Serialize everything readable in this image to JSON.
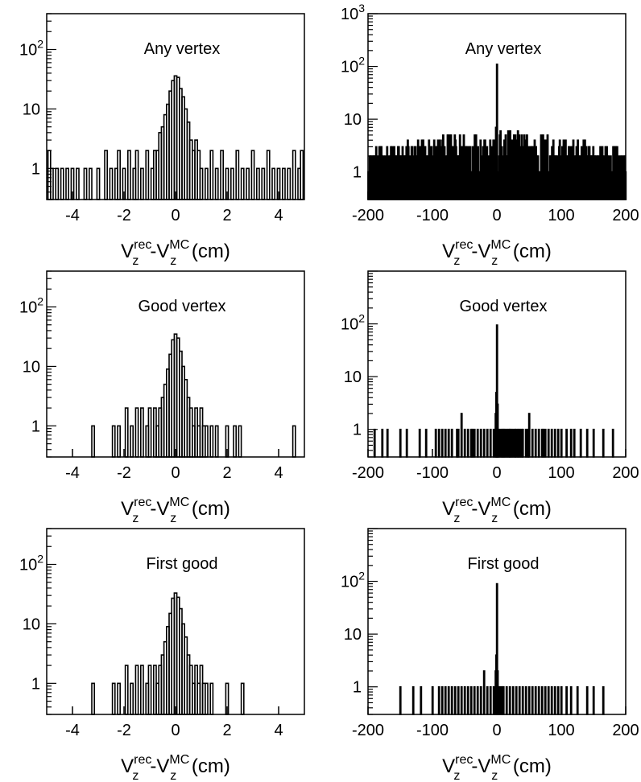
{
  "chart_data": [
    {
      "type": "histogram",
      "title": "Any vertex",
      "xlabel": {
        "base1": "V",
        "sub1": "z",
        "sup1": "rec",
        "dash": "-",
        "base2": "V",
        "sub2": "z",
        "sup2": "MC",
        "unit": " (cm)"
      },
      "yscale": "log",
      "xlim": [
        -5,
        5
      ],
      "xticks": [
        "-4",
        "-2",
        "0",
        "2",
        "4"
      ],
      "xtick_values": [
        -4,
        -2,
        0,
        2,
        4
      ],
      "ylim": [
        0.3,
        400
      ],
      "yticks": [
        {
          "label": "1",
          "value": 1
        },
        {
          "label": "10",
          "value": 10
        },
        {
          "label": "10",
          "sup": "2",
          "value": 100
        }
      ],
      "bin_width": 0.1,
      "peak_bins": {
        "x": [
          -0.9,
          -0.8,
          -0.7,
          -0.6,
          -0.5,
          -0.4,
          -0.3,
          -0.2,
          -0.1,
          0.0,
          0.1,
          0.2,
          0.3,
          0.4,
          0.5,
          0.6,
          0.7,
          0.8,
          0.9,
          1.0
        ],
        "values": [
          1,
          2,
          2,
          4,
          5,
          8,
          12,
          20,
          30,
          36,
          34,
          22,
          16,
          10,
          6,
          3,
          2,
          3,
          2,
          1
        ]
      },
      "tail_bins": {
        "x": [
          -4.9,
          -4.8,
          -4.6,
          -4.4,
          -4.2,
          -4.0,
          -3.8,
          -3.5,
          -3.3,
          -3.0,
          -2.7,
          -2.5,
          -2.3,
          -2.2,
          -2.0,
          -1.8,
          -1.6,
          -1.5,
          -1.3,
          -1.1,
          1.2,
          1.4,
          1.6,
          1.8,
          2.0,
          2.2,
          2.4,
          2.6,
          2.8,
          3.0,
          3.2,
          3.4,
          3.6,
          3.8,
          4.0,
          4.2,
          4.4,
          4.6,
          4.8,
          4.9
        ],
        "values": [
          2,
          1,
          1,
          1,
          1,
          1,
          1,
          1,
          1,
          1,
          2,
          1,
          1,
          2,
          1,
          2,
          1,
          2,
          1,
          2,
          1,
          2,
          1,
          2,
          1,
          1,
          2,
          1,
          1,
          2,
          1,
          1,
          2,
          1,
          1,
          1,
          1,
          2,
          1,
          2
        ]
      }
    },
    {
      "type": "histogram",
      "title": "Any vertex",
      "xlabel": {
        "base1": "V",
        "sub1": "z",
        "sup1": "rec",
        "dash": "-",
        "base2": "V",
        "sub2": "z",
        "sup2": "MC",
        "unit": " (cm)"
      },
      "yscale": "log",
      "xlim": [
        -200,
        200
      ],
      "xticks": [
        "-200",
        "-100",
        "0",
        "100",
        "200"
      ],
      "xtick_values": [
        -200,
        -100,
        0,
        100,
        200
      ],
      "ylim": [
        0.3,
        1000
      ],
      "yticks": [
        {
          "label": "1",
          "value": 1
        },
        {
          "label": "10",
          "value": 10
        },
        {
          "label": "10",
          "sup": "2",
          "value": 100
        },
        {
          "label": "10",
          "sup": "3",
          "value": 1000
        }
      ],
      "bin_width": 1,
      "spike": {
        "x": 0,
        "value": 110
      },
      "noise_range": [
        1,
        7
      ]
    },
    {
      "type": "histogram",
      "title": "Good vertex",
      "xlabel": {
        "base1": "V",
        "sub1": "z",
        "sup1": "rec",
        "dash": "-",
        "base2": "V",
        "sub2": "z",
        "sup2": "MC",
        "unit": " (cm)"
      },
      "yscale": "log",
      "xlim": [
        -5,
        5
      ],
      "xticks": [
        "-4",
        "-2",
        "0",
        "2",
        "4"
      ],
      "xtick_values": [
        -4,
        -2,
        0,
        2,
        4
      ],
      "ylim": [
        0.3,
        400
      ],
      "yticks": [
        {
          "label": "1",
          "value": 1
        },
        {
          "label": "10",
          "value": 10
        },
        {
          "label": "10",
          "sup": "2",
          "value": 100
        }
      ],
      "bin_width": 0.1,
      "peak_bins": {
        "x": [
          -0.8,
          -0.7,
          -0.6,
          -0.5,
          -0.4,
          -0.3,
          -0.2,
          -0.1,
          0.0,
          0.1,
          0.2,
          0.3,
          0.4,
          0.5,
          0.6,
          0.7
        ],
        "values": [
          2,
          1,
          2,
          3,
          5,
          9,
          16,
          28,
          35,
          30,
          18,
          10,
          6,
          3,
          2,
          1
        ]
      },
      "tail_bins": {
        "x": [
          -3.2,
          -2.4,
          -2.2,
          -1.9,
          -1.7,
          -1.5,
          -1.3,
          -1.1,
          -1.0,
          0.8,
          0.9,
          1.0,
          1.1,
          1.2,
          1.4,
          1.6,
          2.0,
          2.3,
          2.5,
          4.6
        ],
        "values": [
          1,
          1,
          1,
          2,
          1,
          2,
          2,
          1,
          2,
          2,
          1,
          2,
          1,
          1,
          1,
          1,
          1,
          1,
          1,
          1
        ]
      }
    },
    {
      "type": "histogram",
      "title": "Good vertex",
      "xlabel": {
        "base1": "V",
        "sub1": "z",
        "sup1": "rec",
        "dash": "-",
        "base2": "V",
        "sub2": "z",
        "sup2": "MC",
        "unit": " (cm)"
      },
      "yscale": "log",
      "xlim": [
        -200,
        200
      ],
      "xticks": [
        "-200",
        "-100",
        "0",
        "100",
        "200"
      ],
      "xtick_values": [
        -200,
        -100,
        0,
        100,
        200
      ],
      "ylim": [
        0.3,
        1000
      ],
      "yticks": [
        {
          "label": "1",
          "value": 1
        },
        {
          "label": "10",
          "value": 10
        },
        {
          "label": "10",
          "sup": "2",
          "value": 100
        }
      ],
      "bin_width": 1,
      "spike": {
        "x": 0,
        "value": 95
      },
      "secondary_bins": {
        "x": [
          -2,
          -1,
          1,
          2
        ],
        "values": [
          2,
          5,
          3,
          1
        ]
      },
      "tail_bins": {
        "x": [
          -190,
          -178,
          -170,
          -150,
          -140,
          -120,
          -110,
          -95,
          -90,
          -85,
          -80,
          -75,
          -70,
          -62,
          -60,
          -55,
          -50,
          -45,
          -40,
          -38,
          -35,
          -30,
          -25,
          -20,
          -15,
          -10,
          -5,
          5,
          8,
          10,
          12,
          15,
          18,
          20,
          22,
          25,
          28,
          30,
          33,
          35,
          38,
          40,
          45,
          48,
          50,
          55,
          60,
          65,
          70,
          72,
          75,
          80,
          85,
          90,
          95,
          100,
          108,
          115,
          120,
          130,
          140,
          150,
          165,
          180
        ],
        "values": [
          1,
          1,
          1,
          1,
          1,
          1,
          1,
          1,
          1,
          1,
          1,
          1,
          1,
          1,
          1,
          2,
          1,
          1,
          1,
          1,
          1,
          1,
          1,
          1,
          1,
          1,
          1,
          1,
          1,
          1,
          1,
          1,
          1,
          1,
          1,
          1,
          1,
          1,
          1,
          1,
          1,
          1,
          1,
          1,
          2,
          1,
          1,
          1,
          1,
          1,
          1,
          1,
          1,
          1,
          1,
          1,
          1,
          1,
          1,
          1,
          1,
          1,
          1,
          1
        ]
      }
    },
    {
      "type": "histogram",
      "title": "First good",
      "xlabel": {
        "base1": "V",
        "sub1": "z",
        "sup1": "rec",
        "dash": "-",
        "base2": "V",
        "sub2": "z",
        "sup2": "MC",
        "unit": " (cm)"
      },
      "yscale": "log",
      "xlim": [
        -5,
        5
      ],
      "xticks": [
        "-4",
        "-2",
        "0",
        "2",
        "4"
      ],
      "xtick_values": [
        -4,
        -2,
        0,
        2,
        4
      ],
      "ylim": [
        0.3,
        400
      ],
      "yticks": [
        {
          "label": "1",
          "value": 1
        },
        {
          "label": "10",
          "value": 10
        },
        {
          "label": "10",
          "sup": "2",
          "value": 100
        }
      ],
      "bin_width": 0.1,
      "peak_bins": {
        "x": [
          -0.8,
          -0.7,
          -0.6,
          -0.5,
          -0.4,
          -0.3,
          -0.2,
          -0.1,
          0.0,
          0.1,
          0.2,
          0.3,
          0.4,
          0.5,
          0.6,
          0.7
        ],
        "values": [
          2,
          1,
          2,
          3,
          5,
          9,
          15,
          27,
          33,
          28,
          18,
          10,
          6,
          3,
          2,
          1
        ]
      },
      "tail_bins": {
        "x": [
          -3.2,
          -2.4,
          -2.2,
          -1.9,
          -1.7,
          -1.5,
          -1.3,
          -1.1,
          -1.0,
          0.8,
          0.9,
          1.0,
          1.1,
          1.2,
          1.4,
          2.0,
          2.6
        ],
        "values": [
          1,
          1,
          1,
          2,
          1,
          2,
          2,
          1,
          2,
          2,
          1,
          2,
          1,
          1,
          1,
          1,
          1
        ]
      }
    },
    {
      "type": "histogram",
      "title": "First good",
      "xlabel": {
        "base1": "V",
        "sub1": "z",
        "sup1": "rec",
        "dash": "-",
        "base2": "V",
        "sub2": "z",
        "sup2": "MC",
        "unit": " (cm)"
      },
      "yscale": "log",
      "xlim": [
        -200,
        200
      ],
      "xticks": [
        "-200",
        "-100",
        "0",
        "100",
        "200"
      ],
      "xtick_values": [
        -200,
        -100,
        0,
        100,
        200
      ],
      "ylim": [
        0.3,
        1000
      ],
      "yticks": [
        {
          "label": "1",
          "value": 1
        },
        {
          "label": "10",
          "value": 10
        },
        {
          "label": "10",
          "sup": "2",
          "value": 100
        }
      ],
      "bin_width": 1,
      "spike": {
        "x": 0,
        "value": 90
      },
      "secondary_bins": {
        "x": [
          -2,
          -1,
          1,
          2
        ],
        "values": [
          2,
          4,
          2,
          1
        ]
      },
      "tail_bins": {
        "x": [
          -150,
          -130,
          -118,
          -100,
          -90,
          -85,
          -80,
          -75,
          -70,
          -65,
          -60,
          -55,
          -50,
          -45,
          -40,
          -35,
          -30,
          -25,
          -20,
          -15,
          -10,
          -5,
          5,
          8,
          10,
          15,
          20,
          25,
          30,
          35,
          40,
          45,
          50,
          55,
          60,
          65,
          70,
          75,
          80,
          85,
          90,
          95,
          100,
          108,
          115,
          125,
          140,
          150,
          165
        ],
        "values": [
          1,
          1,
          1,
          1,
          1,
          1,
          1,
          1,
          1,
          1,
          1,
          1,
          1,
          1,
          1,
          1,
          1,
          1,
          2,
          1,
          1,
          1,
          1,
          1,
          1,
          1,
          1,
          1,
          1,
          1,
          1,
          1,
          1,
          1,
          1,
          1,
          1,
          1,
          1,
          1,
          1,
          1,
          1,
          1,
          1,
          1,
          1,
          1,
          1
        ]
      }
    }
  ]
}
